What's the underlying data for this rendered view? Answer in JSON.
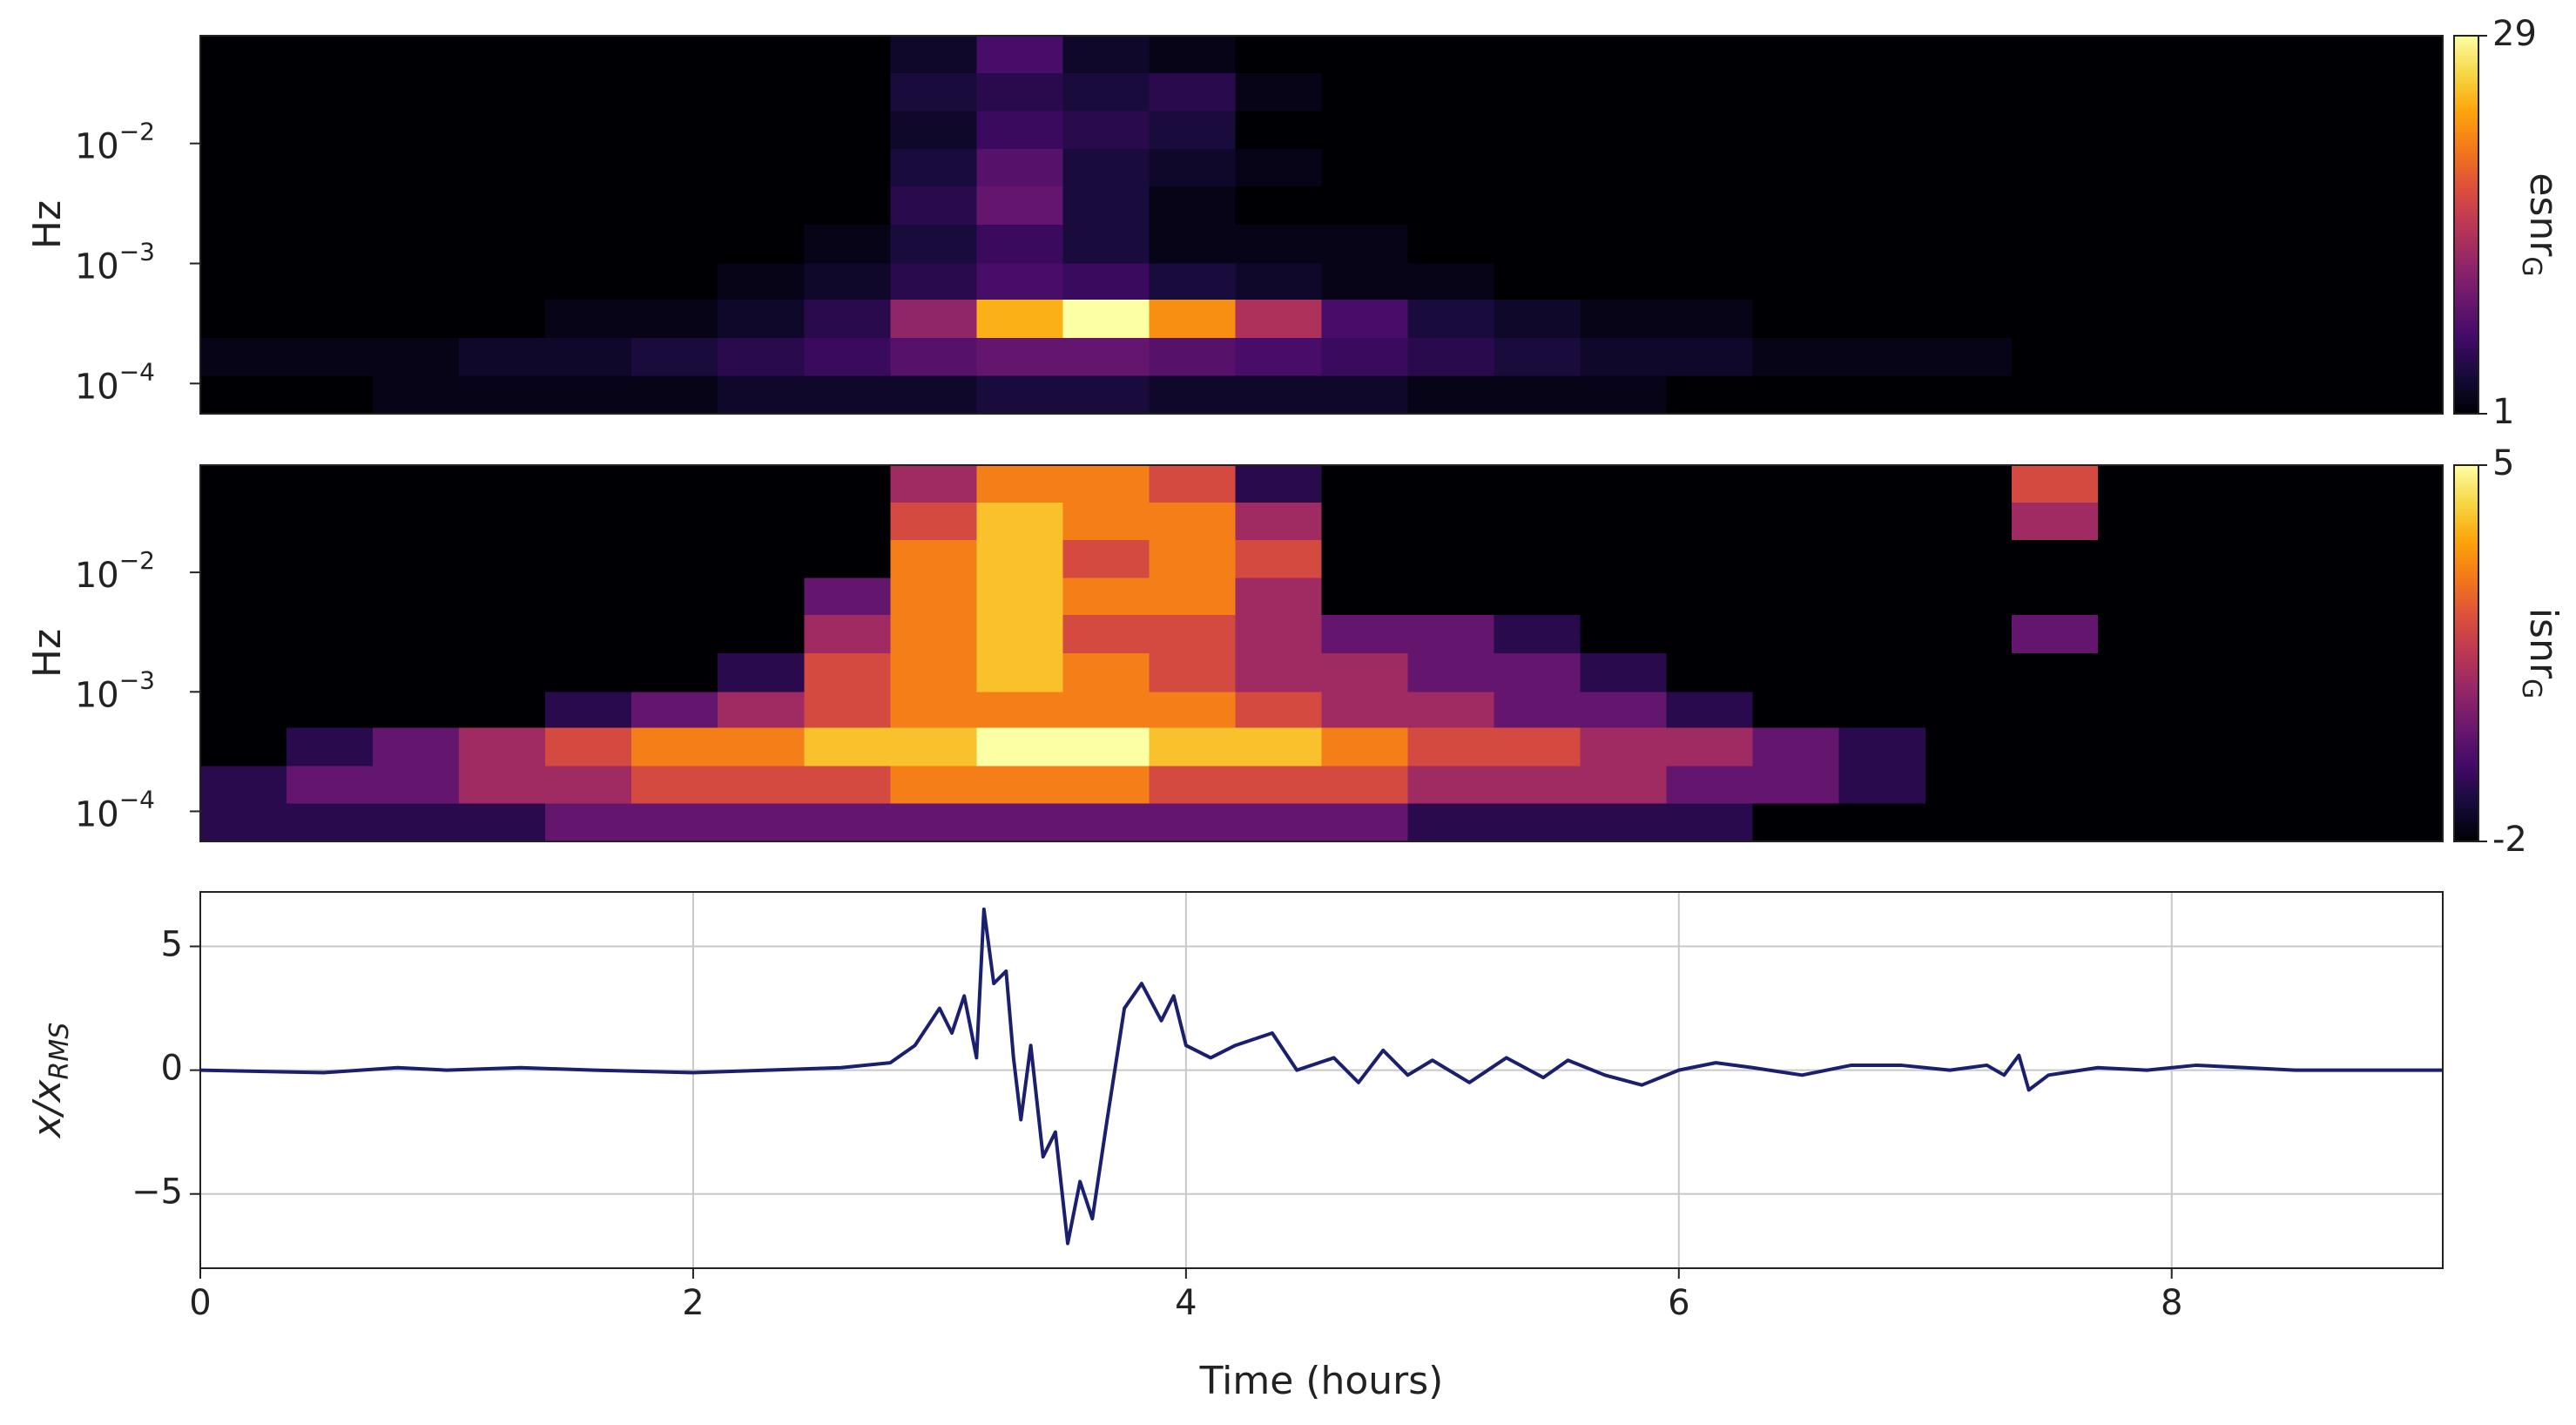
{
  "chart_data": [
    {
      "type": "heatmap",
      "ylabel": "Hz",
      "colormap": "inferno",
      "log_y": true,
      "xlim": [
        0,
        9.1
      ],
      "ylim": [
        5.6e-05,
        0.079
      ],
      "yticks": [
        {
          "value": 0.01,
          "label": "10",
          "exponent": "−2"
        },
        {
          "value": 0.001,
          "label": "10",
          "exponent": "−3"
        },
        {
          "value": 0.0001,
          "label": "10",
          "exponent": "−4"
        }
      ],
      "xbins": [
        0,
        0.35,
        0.7,
        1.05,
        1.4,
        1.75,
        2.1,
        2.45,
        2.8,
        3.15,
        3.5,
        3.85,
        4.2,
        4.55,
        4.9,
        5.25,
        5.6,
        5.95,
        6.3,
        6.65,
        7.0,
        7.35,
        7.7,
        8.05,
        8.4,
        8.75,
        9.1
      ],
      "ybins": [
        0.079,
        0.0385,
        0.0186,
        0.009,
        0.0044,
        0.0021,
        0.001,
        0.0005,
        0.00024,
        0.000116,
        5.6e-05
      ],
      "values": [
        [
          1,
          1,
          1,
          1,
          1,
          1,
          1,
          1,
          3,
          7,
          3,
          2,
          1,
          1,
          1,
          1,
          1,
          1,
          1,
          1,
          1,
          1,
          1,
          1,
          1,
          1
        ],
        [
          1,
          1,
          1,
          1,
          1,
          1,
          1,
          1,
          4,
          5,
          4,
          5,
          2,
          1,
          1,
          1,
          1,
          1,
          1,
          1,
          1,
          1,
          1,
          1,
          1,
          1
        ],
        [
          1,
          1,
          1,
          1,
          1,
          1,
          1,
          1,
          3,
          6,
          5,
          4,
          1,
          1,
          1,
          1,
          1,
          1,
          1,
          1,
          1,
          1,
          1,
          1,
          1,
          1
        ],
        [
          1,
          1,
          1,
          1,
          1,
          1,
          1,
          1,
          4,
          8,
          4,
          3,
          2,
          1,
          1,
          1,
          1,
          1,
          1,
          1,
          1,
          1,
          1,
          1,
          1,
          1
        ],
        [
          1,
          1,
          1,
          1,
          1,
          1,
          1,
          1,
          5,
          9,
          4,
          2,
          1,
          1,
          1,
          1,
          1,
          1,
          1,
          1,
          1,
          1,
          1,
          1,
          1,
          1
        ],
        [
          1,
          1,
          1,
          1,
          1,
          1,
          1,
          2,
          4,
          6,
          4,
          2,
          2,
          2,
          1,
          1,
          1,
          1,
          1,
          1,
          1,
          1,
          1,
          1,
          1,
          1
        ],
        [
          1,
          1,
          1,
          1,
          1,
          1,
          2,
          3,
          5,
          7,
          6,
          4,
          3,
          2,
          2,
          1,
          1,
          1,
          1,
          1,
          1,
          1,
          1,
          1,
          1,
          1
        ],
        [
          1,
          1,
          1,
          1,
          2,
          2,
          3,
          5,
          12,
          24,
          29,
          22,
          14,
          7,
          4,
          3,
          2,
          2,
          1,
          1,
          1,
          1,
          1,
          1,
          1,
          1
        ],
        [
          2,
          2,
          2,
          3,
          3,
          4,
          5,
          6,
          8,
          9,
          9,
          8,
          7,
          6,
          5,
          4,
          3,
          3,
          2,
          2,
          2,
          1,
          1,
          1,
          1,
          1
        ],
        [
          1,
          1,
          2,
          2,
          2,
          2,
          3,
          3,
          3,
          4,
          4,
          3,
          3,
          3,
          2,
          2,
          2,
          1,
          1,
          1,
          1,
          1,
          1,
          1,
          1,
          1
        ]
      ],
      "colorbar_lim": [
        1,
        29
      ],
      "colorbar_ticks": [
        1,
        29
      ],
      "colorbar_label": "esnr",
      "colorbar_label_sub": "G"
    },
    {
      "type": "heatmap",
      "ylabel": "Hz",
      "colormap": "inferno",
      "log_y": true,
      "xlim": [
        0,
        9.1
      ],
      "ylim": [
        5.6e-05,
        0.079
      ],
      "yticks": [
        {
          "value": 0.01,
          "label": "10",
          "exponent": "−2"
        },
        {
          "value": 0.001,
          "label": "10",
          "exponent": "−3"
        },
        {
          "value": 0.0001,
          "label": "10",
          "exponent": "−4"
        }
      ],
      "xbins": [
        0,
        0.35,
        0.7,
        1.05,
        1.4,
        1.75,
        2.1,
        2.45,
        2.8,
        3.15,
        3.5,
        3.85,
        4.2,
        4.55,
        4.9,
        5.25,
        5.6,
        5.95,
        6.3,
        6.65,
        7.0,
        7.35,
        7.7,
        8.05,
        8.4,
        8.75,
        9.1
      ],
      "ybins": [
        0.079,
        0.0385,
        0.0186,
        0.009,
        0.0044,
        0.0021,
        0.001,
        0.0005,
        0.00024,
        0.000116,
        5.6e-05
      ],
      "values": [
        [
          -2,
          -2,
          -2,
          -2,
          -2,
          -2,
          -2,
          -2,
          1,
          3,
          3,
          2,
          -1,
          -2,
          -2,
          -2,
          -2,
          -2,
          -2,
          -2,
          -2,
          2,
          -2,
          -2,
          -2,
          -2
        ],
        [
          -2,
          -2,
          -2,
          -2,
          -2,
          -2,
          -2,
          -2,
          2,
          4,
          3,
          3,
          1,
          -2,
          -2,
          -2,
          -2,
          -2,
          -2,
          -2,
          -2,
          1,
          -2,
          -2,
          -2,
          -2
        ],
        [
          -2,
          -2,
          -2,
          -2,
          -2,
          -2,
          -2,
          -2,
          3,
          4,
          2,
          3,
          2,
          -2,
          -2,
          -2,
          -2,
          -2,
          -2,
          -2,
          -2,
          -2,
          -2,
          -2,
          -2,
          -2
        ],
        [
          -2,
          -2,
          -2,
          -2,
          -2,
          -2,
          -2,
          0,
          3,
          4,
          3,
          3,
          1,
          -2,
          -2,
          -2,
          -2,
          -2,
          -2,
          -2,
          -2,
          -2,
          -2,
          -2,
          -2,
          -2
        ],
        [
          -2,
          -2,
          -2,
          -2,
          -2,
          -2,
          -2,
          1,
          3,
          4,
          2,
          2,
          1,
          0,
          0,
          -1,
          -2,
          -2,
          -2,
          -2,
          -2,
          0,
          -2,
          -2,
          -2,
          -2
        ],
        [
          -2,
          -2,
          -2,
          -2,
          -2,
          -2,
          -1,
          2,
          3,
          4,
          3,
          2,
          1,
          1,
          0,
          0,
          -1,
          -2,
          -2,
          -2,
          -2,
          -2,
          -2,
          -2,
          -2,
          -2
        ],
        [
          -2,
          -2,
          -2,
          -2,
          -1,
          0,
          1,
          2,
          3,
          3,
          3,
          3,
          2,
          1,
          1,
          0,
          0,
          -1,
          -2,
          -2,
          -2,
          -2,
          -2,
          -2,
          -2,
          -2
        ],
        [
          -2,
          -1,
          0,
          1,
          2,
          3,
          3,
          4,
          4,
          5,
          5,
          4,
          4,
          3,
          2,
          2,
          1,
          1,
          0,
          -1,
          -2,
          -2,
          -2,
          -2,
          -2,
          -2
        ],
        [
          -1,
          0,
          0,
          1,
          1,
          2,
          2,
          2,
          3,
          3,
          3,
          2,
          2,
          2,
          1,
          1,
          1,
          0,
          0,
          -1,
          -2,
          -2,
          -2,
          -2,
          -2,
          -2
        ],
        [
          -1,
          -1,
          -1,
          -1,
          0,
          0,
          0,
          0,
          0,
          0,
          0,
          0,
          0,
          0,
          -1,
          -1,
          -1,
          -1,
          -2,
          -2,
          -2,
          -2,
          -2,
          -2,
          -2,
          -2
        ]
      ],
      "colorbar_lim": [
        -2,
        5
      ],
      "colorbar_ticks": [
        -2,
        5
      ],
      "colorbar_label": "isnr",
      "colorbar_label_sub": "G"
    },
    {
      "type": "line",
      "xlabel": "Time (hours)",
      "ylabel": "x/x",
      "ylabel_sub": "RMS",
      "grid": true,
      "xlim": [
        0,
        9.1
      ],
      "ylim": [
        -8,
        7.2
      ],
      "xticks": [
        0,
        2,
        4,
        6,
        8
      ],
      "yticks": [
        {
          "value": -5,
          "label": "−5"
        },
        0,
        5
      ],
      "series": [
        {
          "color": "#1a1f6e",
          "x": [
            0,
            0.5,
            0.8,
            1.0,
            1.3,
            1.6,
            2.0,
            2.3,
            2.6,
            2.8,
            2.9,
            3.0,
            3.05,
            3.1,
            3.15,
            3.18,
            3.22,
            3.27,
            3.3,
            3.33,
            3.37,
            3.42,
            3.47,
            3.52,
            3.57,
            3.62,
            3.68,
            3.75,
            3.82,
            3.9,
            3.95,
            4.0,
            4.1,
            4.2,
            4.35,
            4.45,
            4.6,
            4.7,
            4.8,
            4.9,
            5.0,
            5.15,
            5.3,
            5.45,
            5.55,
            5.7,
            5.85,
            6.0,
            6.15,
            6.3,
            6.5,
            6.7,
            6.9,
            7.1,
            7.25,
            7.32,
            7.38,
            7.42,
            7.5,
            7.7,
            7.9,
            8.1,
            8.3,
            8.5,
            8.8,
            9.1
          ],
          "values": [
            0,
            -0.1,
            0.1,
            0,
            0.1,
            0,
            -0.1,
            0,
            0.1,
            0.3,
            1.0,
            2.5,
            1.5,
            3.0,
            0.5,
            6.5,
            3.5,
            4.0,
            0.5,
            -2,
            1.0,
            -3.5,
            -2.5,
            -7.0,
            -4.5,
            -6.0,
            -2.0,
            2.5,
            3.5,
            2.0,
            3.0,
            1.0,
            0.5,
            1.0,
            1.5,
            0.0,
            0.5,
            -0.5,
            0.8,
            -0.2,
            0.4,
            -0.5,
            0.5,
            -0.3,
            0.4,
            -0.2,
            -0.6,
            0.0,
            0.3,
            0.1,
            -0.2,
            0.2,
            0.2,
            0.0,
            0.2,
            -0.2,
            0.6,
            -0.8,
            -0.2,
            0.1,
            0.0,
            0.2,
            0.1,
            0.0,
            0.0,
            0.0
          ]
        }
      ]
    }
  ]
}
